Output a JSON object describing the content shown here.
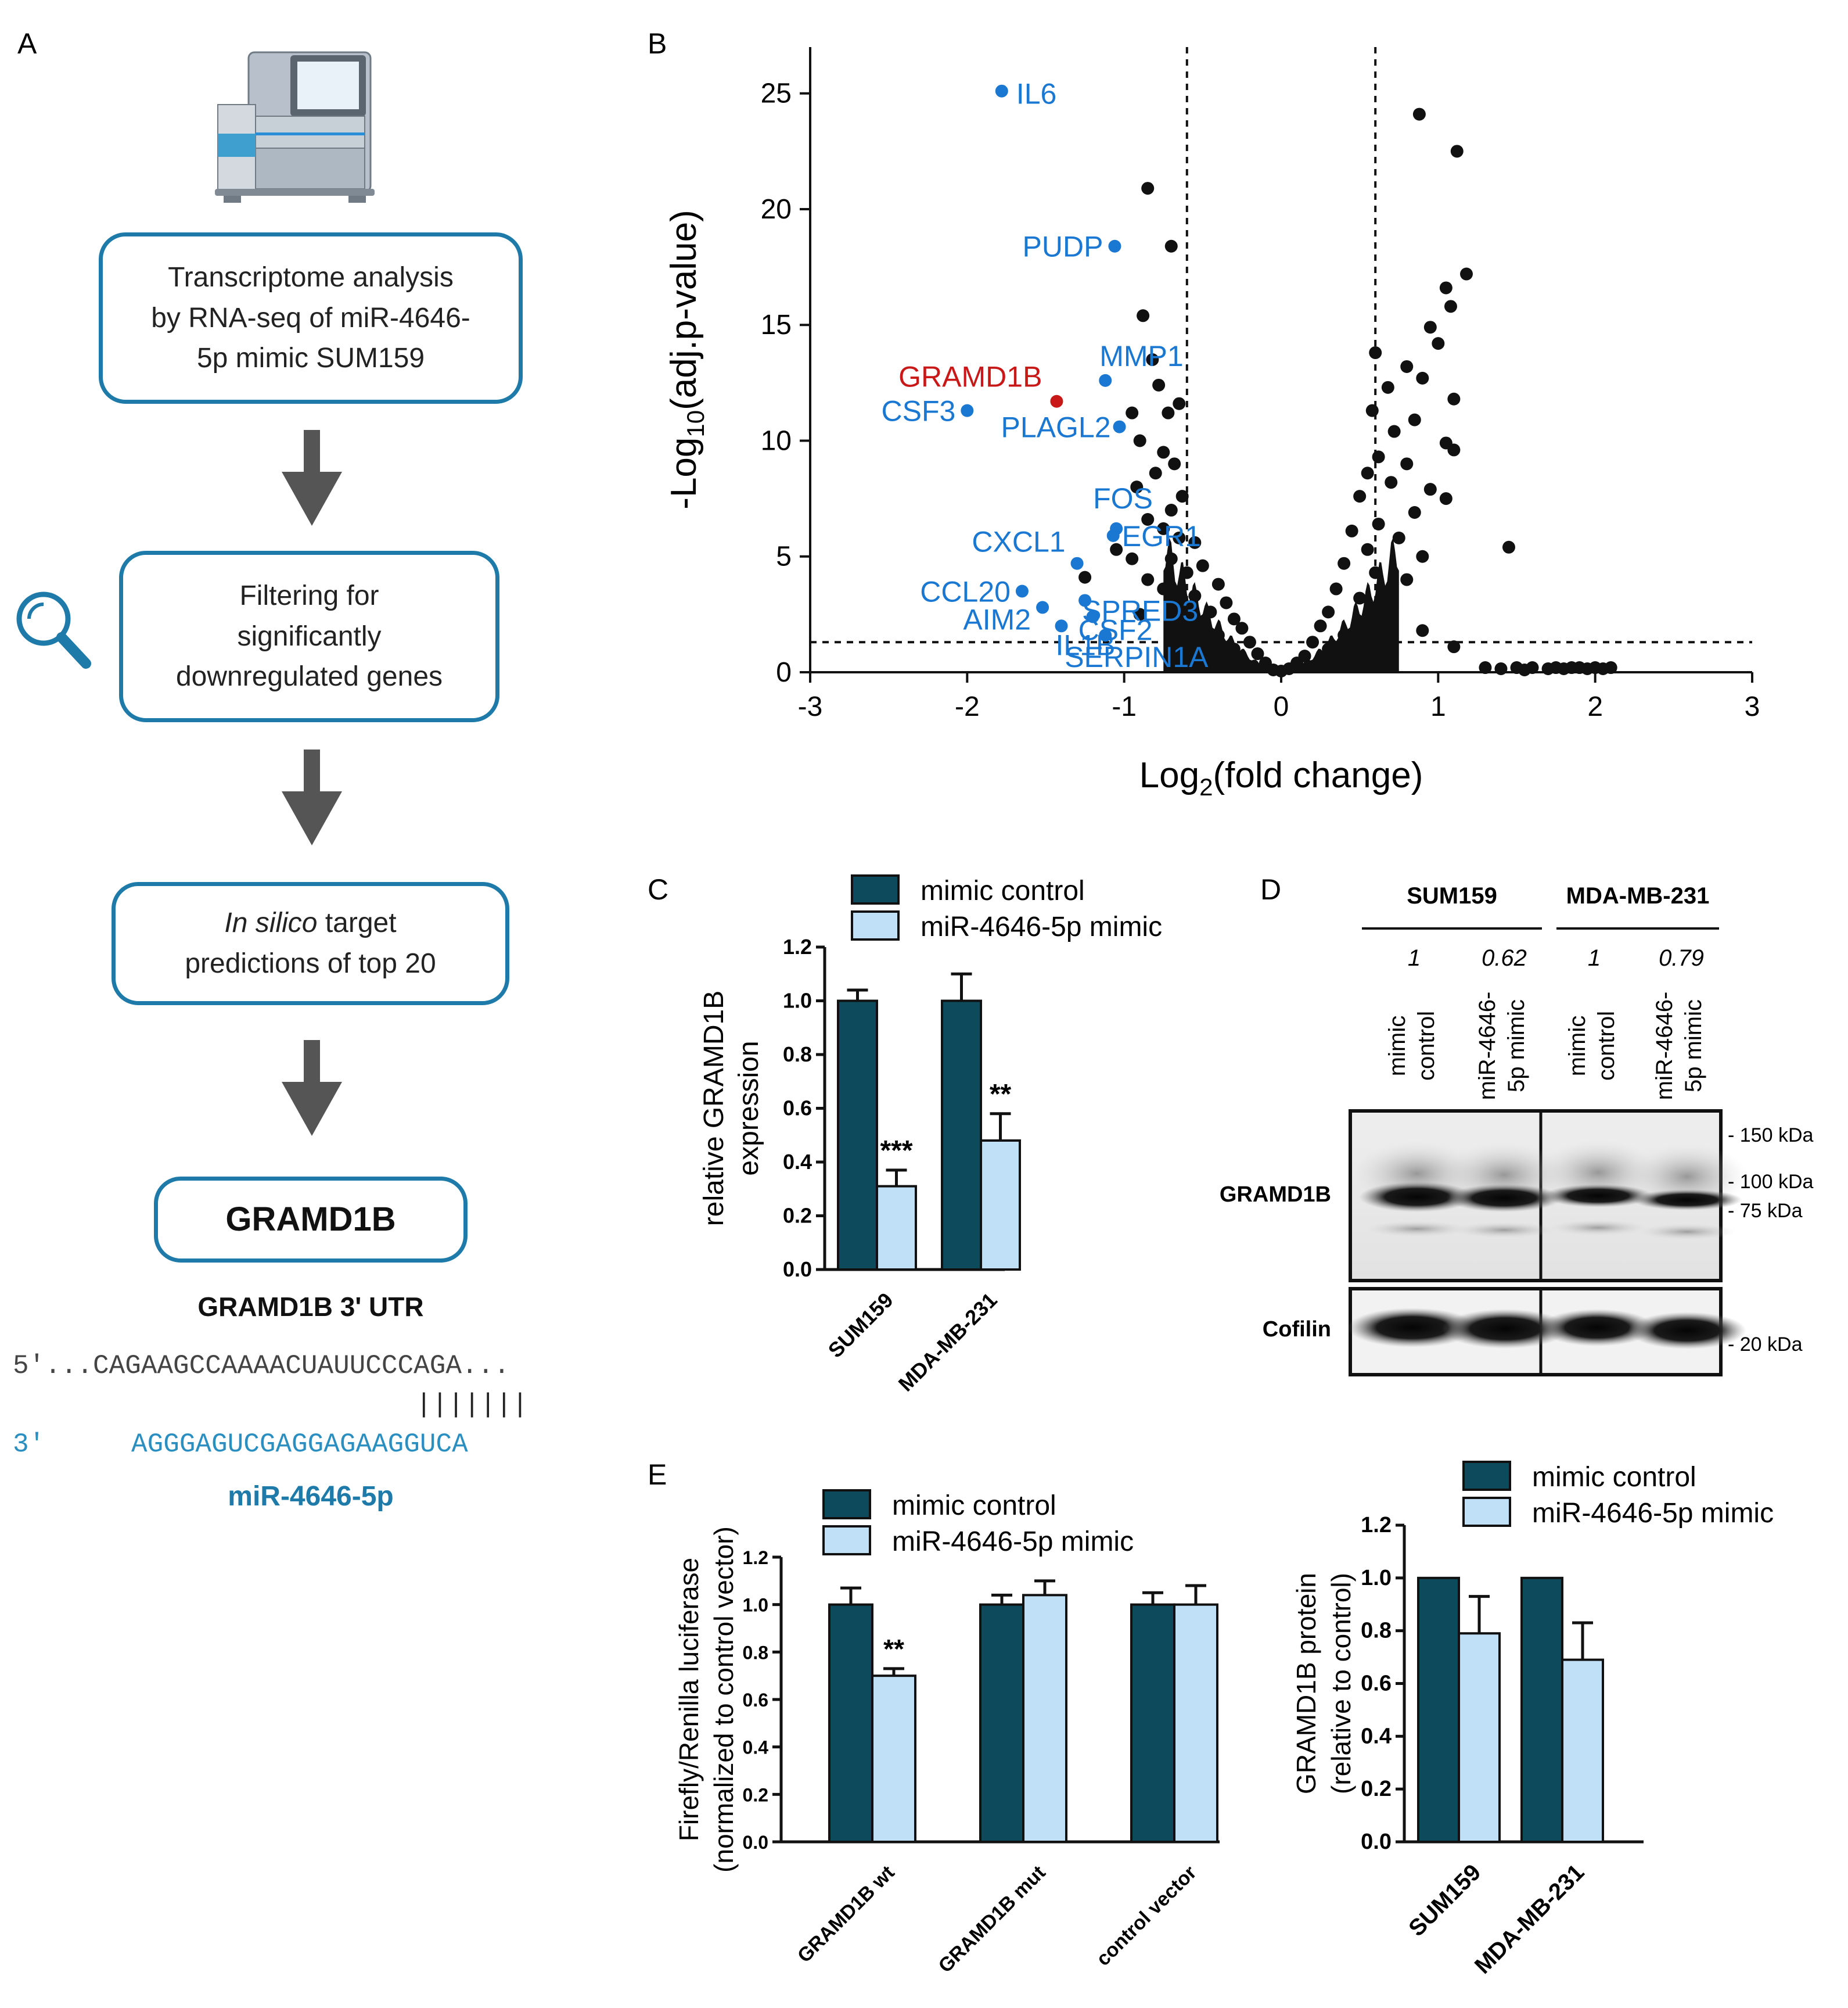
{
  "panel_labels": {
    "a": "A",
    "b": "B",
    "c": "C",
    "d": "D",
    "e": "E"
  },
  "workflow": {
    "step1": "Transcriptome analysis by RNA-seq of miR-4646-5p mimic SUM159",
    "step1_lines": [
      "Transcriptome analysis",
      "by RNA-seq of miR-4646-",
      "5p mimic SUM159"
    ],
    "step2_lines": [
      "Filtering for",
      "significantly",
      "downregulated genes"
    ],
    "step3_italic": "In silico",
    "step3_rest": " target",
    "step3_line2": "predictions of top 20",
    "result": "GRAMD1B",
    "utr_title": "GRAMD1B 3' UTR",
    "utr_seq_prefix": "5'",
    "utr_seq": "...CAGAAGCCAAAACUAUUCCCAGA...",
    "pairing": "|||||||",
    "mir_prefix": "3'",
    "mir_seq": "AGGGAGUCGAGGAGAAGGUCA",
    "mir_name": "miR-4646-5p",
    "icons": [
      "sequencer-icon",
      "magnifier-icon",
      "down-arrow-icon"
    ]
  },
  "colors": {
    "dark": "#0c4a5c",
    "light": "#bfe0f6",
    "blue": "#1e7aa8",
    "label_blue": "#1a78d2",
    "label_red": "#c81818"
  },
  "chart_data": [
    {
      "panel": "B",
      "type": "scatter",
      "title": "",
      "xlabel": "Log2(fold change)",
      "ylabel": "-Log10(adj.p-value)",
      "xlim": [
        -3,
        3
      ],
      "ylim": [
        0,
        27
      ],
      "xticks": [
        "-3",
        "-2",
        "-1",
        "0",
        "1",
        "2",
        "3"
      ],
      "yticks": [
        "0",
        "5",
        "10",
        "15",
        "20",
        "25"
      ],
      "thresholds": {
        "log2fc": [
          -0.6,
          0.6
        ],
        "neglog10p": 1.3
      },
      "labeled_points": [
        {
          "gene": "IL6",
          "x": -1.78,
          "y": 25.1,
          "label_color": "blue"
        },
        {
          "gene": "PUDP",
          "x": -1.06,
          "y": 18.4,
          "label_color": "blue"
        },
        {
          "gene": "MMP1",
          "x": -1.12,
          "y": 12.6,
          "label_color": "blue"
        },
        {
          "gene": "GRAMD1B",
          "x": -1.43,
          "y": 11.7,
          "label_color": "red"
        },
        {
          "gene": "CSF3",
          "x": -2.0,
          "y": 11.3,
          "label_color": "blue"
        },
        {
          "gene": "PLAGL2",
          "x": -1.03,
          "y": 10.6,
          "label_color": "blue"
        },
        {
          "gene": "FOS",
          "x": -1.05,
          "y": 6.2,
          "label_color": "blue"
        },
        {
          "gene": "EGR1",
          "x": -1.07,
          "y": 5.9,
          "label_color": "blue"
        },
        {
          "gene": "CXCL1",
          "x": -1.3,
          "y": 4.7,
          "label_color": "blue"
        },
        {
          "gene": "CCL20",
          "x": -1.65,
          "y": 3.5,
          "label_color": "blue"
        },
        {
          "gene": "SPRED3",
          "x": -1.25,
          "y": 3.1,
          "label_color": "blue"
        },
        {
          "gene": "AIM2",
          "x": -1.52,
          "y": 2.8,
          "label_color": "blue"
        },
        {
          "gene": "CSF2",
          "x": -1.2,
          "y": 2.4,
          "label_color": "blue"
        },
        {
          "gene": "IL1B",
          "x": -1.4,
          "y": 2.0,
          "label_color": "blue"
        },
        {
          "gene": "SERPIN1A",
          "x": -1.12,
          "y": 1.6,
          "label_color": "blue"
        }
      ],
      "other_points": [
        [
          -0.85,
          20.9
        ],
        [
          -0.7,
          18.4
        ],
        [
          -0.88,
          15.4
        ],
        [
          -0.82,
          13.5
        ],
        [
          -0.78,
          12.4
        ],
        [
          -0.72,
          11.2
        ],
        [
          -0.65,
          11.6
        ],
        [
          -0.95,
          11.2
        ],
        [
          -0.9,
          10.0
        ],
        [
          -0.75,
          9.5
        ],
        [
          -0.68,
          9.0
        ],
        [
          -0.8,
          8.6
        ],
        [
          -0.92,
          8.0
        ],
        [
          -0.63,
          7.6
        ],
        [
          -0.7,
          7.0
        ],
        [
          -0.85,
          6.6
        ],
        [
          -0.75,
          6.2
        ],
        [
          -0.65,
          5.8
        ],
        [
          -0.55,
          5.6
        ],
        [
          -1.05,
          5.3
        ],
        [
          -0.95,
          4.9
        ],
        [
          -0.7,
          4.9
        ],
        [
          -0.5,
          4.6
        ],
        [
          -0.6,
          4.3
        ],
        [
          -1.25,
          4.1
        ],
        [
          -0.85,
          4.0
        ],
        [
          -0.4,
          3.8
        ],
        [
          -0.75,
          3.6
        ],
        [
          -0.55,
          3.3
        ],
        [
          -0.35,
          3.0
        ],
        [
          -0.65,
          2.9
        ],
        [
          -0.45,
          2.6
        ],
        [
          -0.9,
          2.5
        ],
        [
          -0.3,
          2.3
        ],
        [
          -0.55,
          2.1
        ],
        [
          -0.25,
          1.9
        ],
        [
          -0.4,
          1.6
        ],
        [
          -0.7,
          1.5
        ],
        [
          -0.2,
          1.3
        ],
        [
          -0.3,
          1.0
        ],
        [
          -0.15,
          0.8
        ],
        [
          -0.5,
          0.9
        ],
        [
          -0.1,
          0.4
        ],
        [
          -0.05,
          0.1
        ],
        [
          0.0,
          0.05
        ],
        [
          0.05,
          0.15
        ],
        [
          0.88,
          24.1
        ],
        [
          1.12,
          22.5
        ],
        [
          1.18,
          17.2
        ],
        [
          1.05,
          16.6
        ],
        [
          1.08,
          15.8
        ],
        [
          0.95,
          14.9
        ],
        [
          1.0,
          14.2
        ],
        [
          0.6,
          13.8
        ],
        [
          0.8,
          13.2
        ],
        [
          0.9,
          12.7
        ],
        [
          0.68,
          12.3
        ],
        [
          1.1,
          11.8
        ],
        [
          0.58,
          11.3
        ],
        [
          0.85,
          10.9
        ],
        [
          0.72,
          10.4
        ],
        [
          1.05,
          9.9
        ],
        [
          1.1,
          9.6
        ],
        [
          0.62,
          9.3
        ],
        [
          0.8,
          9.0
        ],
        [
          0.55,
          8.6
        ],
        [
          0.7,
          8.2
        ],
        [
          0.95,
          7.9
        ],
        [
          1.05,
          7.5
        ],
        [
          0.5,
          7.6
        ],
        [
          0.85,
          6.9
        ],
        [
          0.62,
          6.4
        ],
        [
          0.45,
          6.1
        ],
        [
          0.75,
          5.8
        ],
        [
          1.45,
          5.4
        ],
        [
          0.55,
          5.3
        ],
        [
          0.9,
          5.0
        ],
        [
          0.4,
          4.7
        ],
        [
          0.6,
          4.3
        ],
        [
          0.8,
          4.0
        ],
        [
          0.35,
          3.6
        ],
        [
          0.5,
          3.2
        ],
        [
          0.7,
          2.9
        ],
        [
          0.3,
          2.6
        ],
        [
          0.55,
          2.3
        ],
        [
          0.25,
          2.0
        ],
        [
          0.9,
          1.8
        ],
        [
          0.4,
          1.6
        ],
        [
          0.2,
          1.3
        ],
        [
          1.1,
          1.1
        ],
        [
          0.3,
          1.0
        ],
        [
          0.15,
          0.7
        ],
        [
          0.1,
          0.4
        ],
        [
          1.3,
          0.2
        ],
        [
          1.4,
          0.15
        ],
        [
          1.5,
          0.2
        ],
        [
          1.55,
          0.1
        ],
        [
          1.6,
          0.2
        ],
        [
          1.7,
          0.15
        ],
        [
          1.75,
          0.2
        ],
        [
          1.8,
          0.15
        ],
        [
          1.85,
          0.2
        ],
        [
          1.9,
          0.2
        ],
        [
          1.95,
          0.15
        ],
        [
          2.0,
          0.2
        ],
        [
          2.05,
          0.15
        ],
        [
          2.1,
          0.2
        ]
      ]
    },
    {
      "panel": "C",
      "type": "bar",
      "categories": [
        "SUM159",
        "MDA-MB-231"
      ],
      "series": [
        {
          "name": "mimic control",
          "values": [
            1.0,
            1.0
          ],
          "errors": [
            0.04,
            0.1
          ]
        },
        {
          "name": "miR-4646-5p mimic",
          "values": [
            0.31,
            0.48
          ],
          "errors": [
            0.06,
            0.1
          ]
        }
      ],
      "significance": [
        "***",
        "**"
      ],
      "ylabel_lines": [
        "relative GRAMD1B",
        "expression"
      ],
      "ylim": [
        0,
        1.2
      ],
      "yticks": [
        "0.0",
        "0.2",
        "0.4",
        "0.6",
        "0.8",
        "1.0",
        "1.2"
      ],
      "legend": [
        "mimic control",
        "miR-4646-5p mimic"
      ]
    },
    {
      "panel": "E-left",
      "type": "bar",
      "categories": [
        "GRAMD1B wt",
        "GRAMD1B mut",
        "control vector"
      ],
      "series": [
        {
          "name": "mimic control",
          "values": [
            1.0,
            1.0,
            1.0
          ],
          "errors": [
            0.07,
            0.04,
            0.05
          ]
        },
        {
          "name": "miR-4646-5p mimic",
          "values": [
            0.7,
            1.04,
            1.0
          ],
          "errors": [
            0.03,
            0.06,
            0.08
          ]
        }
      ],
      "significance": [
        "**",
        "",
        ""
      ],
      "ylabel_lines": [
        "Firefly/Renilla luciferase",
        "(normalized to control vector)"
      ],
      "ylim": [
        0,
        1.2
      ],
      "yticks": [
        "0.0",
        "0.2",
        "0.4",
        "0.6",
        "0.8",
        "1.0",
        "1.2"
      ],
      "legend": [
        "mimic control",
        "miR-4646-5p mimic"
      ]
    },
    {
      "panel": "E-right",
      "type": "bar",
      "categories": [
        "SUM159",
        "MDA-MB-231"
      ],
      "series": [
        {
          "name": "mimic control",
          "values": [
            1.0,
            1.0
          ],
          "errors": [
            0,
            0
          ]
        },
        {
          "name": "miR-4646-5p mimic",
          "values": [
            0.79,
            0.69
          ],
          "errors": [
            0.14,
            0.14
          ]
        }
      ],
      "significance": [
        "",
        ""
      ],
      "ylabel_lines": [
        "GRAMD1B protein",
        "(relative to control)"
      ],
      "ylim": [
        0,
        1.2
      ],
      "yticks": [
        "0.0",
        "0.2",
        "0.4",
        "0.6",
        "0.8",
        "1.0",
        "1.2"
      ],
      "legend": [
        "mimic control",
        "miR-4646-5p mimic"
      ]
    }
  ],
  "western": {
    "cell_lines": [
      "SUM159",
      "MDA-MB-231"
    ],
    "ratios": [
      "1",
      "0.62",
      "1",
      "0.79"
    ],
    "lane_labels": [
      [
        "mimic",
        "control"
      ],
      [
        "miR-4646-",
        "5p mimic"
      ],
      [
        "mimic",
        "control"
      ],
      [
        "miR-4646-",
        "5p mimic"
      ]
    ],
    "rows": [
      "GRAMD1B",
      "Cofilin"
    ],
    "markers": [
      "- 150 kDa",
      "- 100 kDa",
      "- 75 kDa",
      "- 20 kDa"
    ]
  }
}
